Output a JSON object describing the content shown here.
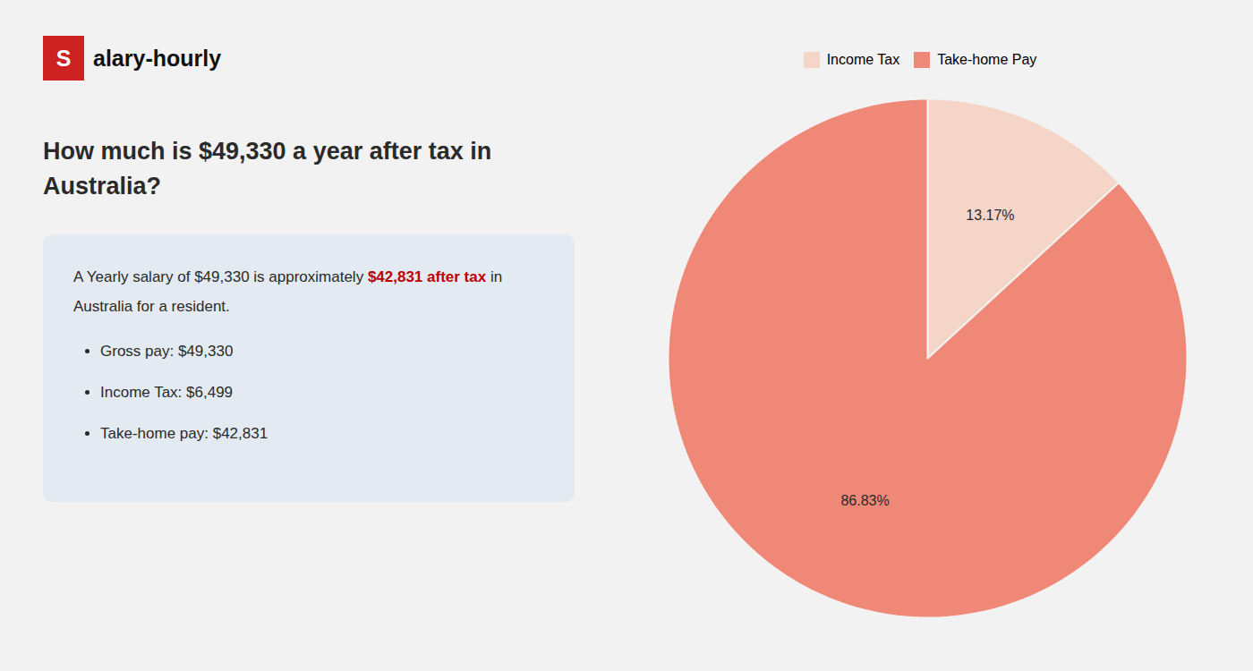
{
  "chart_data": {
    "type": "pie",
    "title": "How much is $49,330 a year after tax in Australia?",
    "annotations": [
      {
        "text": "S"
      },
      {
        "text": "alary-hourly"
      },
      {
        "text": "A Yearly salary of $49,330 is approximately "
      },
      {
        "text": "$42,831 after tax",
        "color": "#bb0000"
      },
      {
        "text": " in"
      },
      {
        "text": "Australia for a resident."
      },
      {
        "text": "Gross pay: $49,330"
      },
      {
        "text": "Income Tax: $6,499"
      },
      {
        "text": "Take-home pay: $42,831"
      }
    ],
    "categories": [
      "Income Tax",
      "Take-home Pay"
    ],
    "values": [
      13.17,
      86.83
    ],
    "value_labels": [
      "13.17%",
      "86.83%"
    ],
    "colors": [
      "#f5d5c8",
      "#f08878"
    ],
    "data_labels": true,
    "legend": "top"
  }
}
